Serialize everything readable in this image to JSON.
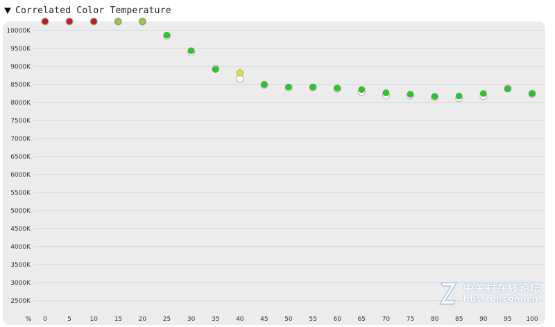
{
  "header": {
    "title": "Correlated Color Temperature"
  },
  "watermark": {
    "cn": "中关村在线论坛",
    "url": "bbs.zol.com.cn"
  },
  "colors": {
    "green": "#22cc22",
    "yellow_green": "#99cc33",
    "yellow": "#e6e61a",
    "red": "#cc1a1a",
    "reference_ring": "#bbbbbb"
  },
  "chart_data": {
    "type": "scatter",
    "title": "Correlated Color Temperature",
    "x_axis_unit": "%",
    "x": [
      0,
      5,
      10,
      15,
      20,
      25,
      30,
      35,
      40,
      45,
      50,
      55,
      60,
      65,
      70,
      75,
      80,
      85,
      90,
      95,
      100
    ],
    "x_tick_labels": [
      "0",
      "5",
      "10",
      "15",
      "20",
      "25",
      "30",
      "35",
      "40",
      "45",
      "50",
      "55",
      "60",
      "65",
      "70",
      "75",
      "80",
      "85",
      "90",
      "95",
      "100"
    ],
    "y_tick_labels": [
      "10000K",
      "9500K",
      "9000K",
      "8500K",
      "8000K",
      "7500K",
      "7000K",
      "6500K",
      "6000K",
      "5500K",
      "5000K",
      "4500K",
      "4000K",
      "3500K",
      "3000K",
      "2500K"
    ],
    "y_ticks": [
      10000,
      9500,
      9000,
      8500,
      8000,
      7500,
      7000,
      6500,
      6000,
      5500,
      5000,
      4500,
      4000,
      3500,
      3000,
      2500
    ],
    "ylim": [
      2200,
      10250
    ],
    "grid": true,
    "series": [
      {
        "values": [
          10250,
          10250,
          10250,
          10250,
          10250,
          9870,
          9440,
          8920,
          8820,
          8500,
          8430,
          8430,
          8400,
          8360,
          8270,
          8230,
          8170,
          8180,
          8250,
          8380,
          8250
        ],
        "status": [
          "red",
          "red",
          "red",
          "yellow-green",
          "yellow-green",
          "green",
          "green",
          "green",
          "yellow",
          "green",
          "green",
          "green",
          "green",
          "green",
          "green",
          "green",
          "green",
          "green",
          "green",
          "green",
          "green"
        ]
      },
      {
        "values": [
          10250,
          10250,
          10250,
          10250,
          10250,
          9850,
          9390,
          8940,
          8660,
          8490,
          8410,
          8420,
          8380,
          8290,
          8200,
          8190,
          8150,
          8120,
          8180,
          8390,
          8240
        ]
      }
    ]
  }
}
